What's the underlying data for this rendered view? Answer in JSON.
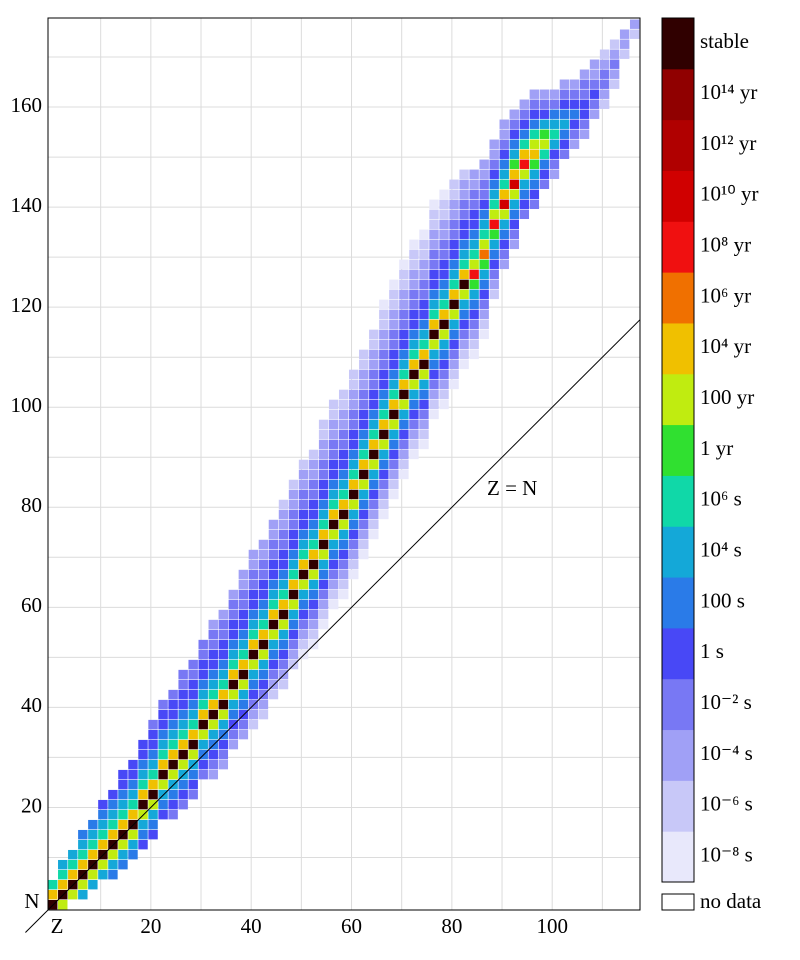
{
  "chart_data": {
    "type": "heatmap",
    "xlabel": "Z",
    "ylabel": "N",
    "xlim": [
      -0.5,
      117.5
    ],
    "ylim": [
      -0.5,
      177.8
    ],
    "xticks": [
      20,
      40,
      60,
      80,
      100
    ],
    "yticks": [
      20,
      40,
      60,
      80,
      100,
      120,
      140,
      160
    ],
    "xgrid": [
      10,
      20,
      30,
      40,
      50,
      60,
      70,
      80,
      90,
      100,
      110
    ],
    "ygrid": [
      10,
      20,
      30,
      40,
      50,
      60,
      70,
      80,
      90,
      100,
      110,
      120,
      130,
      140,
      150,
      160,
      170
    ],
    "grid_color": "#dcdcdc",
    "bin": 2,
    "diagonal_label": "Z = N",
    "rows": [
      {
        "z": 0,
        "n0": 0,
        "levels": [
          16,
          10,
          7
        ]
      },
      {
        "z": 2,
        "n0": 0,
        "levels": [
          9,
          16,
          10,
          7,
          6
        ]
      },
      {
        "z": 4,
        "n0": 2,
        "levels": [
          9,
          16,
          10,
          7,
          6
        ]
      },
      {
        "z": 6,
        "n0": 2,
        "levels": [
          6,
          9,
          16,
          10,
          7,
          6,
          5
        ]
      },
      {
        "z": 8,
        "n0": 4,
        "levels": [
          6,
          9,
          16,
          10,
          7,
          6,
          5
        ]
      },
      {
        "z": 10,
        "n0": 6,
        "levels": [
          6,
          9,
          16,
          10,
          7,
          6,
          5,
          4
        ]
      },
      {
        "z": 12,
        "n0": 6,
        "levels": [
          5,
          6,
          9,
          16,
          10,
          7,
          6,
          5,
          4
        ]
      },
      {
        "z": 14,
        "n0": 8,
        "levels": [
          5,
          6,
          9,
          16,
          10,
          7,
          6,
          5,
          4,
          4
        ]
      },
      {
        "z": 16,
        "n0": 10,
        "levels": [
          5,
          6,
          9,
          16,
          10,
          7,
          6,
          5,
          4,
          4
        ]
      },
      {
        "z": 18,
        "n0": 12,
        "levels": [
          4,
          5,
          6,
          9,
          16,
          10,
          7,
          6,
          5,
          4,
          4
        ]
      },
      {
        "z": 20,
        "n0": 14,
        "levels": [
          4,
          5,
          6,
          9,
          16,
          10,
          7,
          6,
          5,
          4,
          4,
          3
        ]
      },
      {
        "z": 22,
        "n0": 18,
        "levels": [
          4,
          5,
          6,
          9,
          16,
          10,
          7,
          6,
          5,
          4,
          4,
          3
        ]
      },
      {
        "z": 24,
        "n0": 18,
        "levels": [
          3,
          4,
          5,
          6,
          9,
          16,
          10,
          7,
          6,
          5,
          4,
          4,
          3
        ]
      },
      {
        "z": 26,
        "n0": 20,
        "levels": [
          3,
          4,
          5,
          6,
          9,
          16,
          10,
          7,
          6,
          5,
          4,
          4,
          3,
          3
        ]
      },
      {
        "z": 28,
        "n0": 22,
        "levels": [
          3,
          4,
          5,
          6,
          9,
          16,
          10,
          7,
          6,
          5,
          4,
          4,
          3,
          3
        ]
      },
      {
        "z": 30,
        "n0": 26,
        "levels": [
          3,
          4,
          5,
          6,
          9,
          16,
          10,
          7,
          6,
          5,
          4,
          4,
          3,
          3
        ]
      },
      {
        "z": 32,
        "n0": 26,
        "levels": [
          2,
          3,
          4,
          5,
          6,
          9,
          16,
          10,
          7,
          6,
          5,
          4,
          4,
          3,
          3,
          2
        ]
      },
      {
        "z": 34,
        "n0": 28,
        "levels": [
          2,
          3,
          4,
          5,
          6,
          9,
          16,
          10,
          7,
          6,
          5,
          4,
          4,
          3,
          3,
          2
        ]
      },
      {
        "z": 36,
        "n0": 32,
        "levels": [
          2,
          3,
          4,
          5,
          6,
          9,
          16,
          10,
          7,
          6,
          5,
          4,
          4,
          3,
          3,
          2
        ]
      },
      {
        "z": 38,
        "n0": 34,
        "levels": [
          2,
          3,
          4,
          5,
          6,
          9,
          16,
          10,
          7,
          6,
          5,
          4,
          4,
          3,
          3,
          2,
          2
        ]
      },
      {
        "z": 40,
        "n0": 36,
        "levels": [
          1,
          2,
          3,
          4,
          5,
          6,
          9,
          16,
          10,
          7,
          6,
          5,
          4,
          4,
          3,
          3,
          2,
          2
        ]
      },
      {
        "z": 42,
        "n0": 38,
        "levels": [
          1,
          2,
          3,
          4,
          5,
          6,
          9,
          16,
          10,
          7,
          6,
          5,
          4,
          4,
          3,
          3,
          2,
          2
        ]
      },
      {
        "z": 44,
        "n0": 42,
        "levels": [
          1,
          2,
          3,
          4,
          5,
          6,
          9,
          16,
          10,
          7,
          6,
          5,
          4,
          4,
          3,
          3,
          2,
          2
        ]
      },
      {
        "z": 46,
        "n0": 44,
        "levels": [
          1,
          2,
          3,
          4,
          5,
          6,
          9,
          16,
          10,
          7,
          6,
          5,
          4,
          4,
          3,
          3,
          2,
          2,
          1
        ]
      },
      {
        "z": 48,
        "n0": 48,
        "levels": [
          1,
          2,
          3,
          4,
          5,
          6,
          9,
          16,
          10,
          7,
          6,
          5,
          4,
          4,
          3,
          3,
          2,
          2,
          1
        ]
      },
      {
        "z": 50,
        "n0": 50,
        "levels": [
          0,
          1,
          2,
          3,
          4,
          5,
          6,
          9,
          16,
          10,
          7,
          6,
          5,
          4,
          4,
          3,
          3,
          2,
          2,
          1
        ]
      },
      {
        "z": 52,
        "n0": 52,
        "levels": [
          0,
          1,
          2,
          3,
          4,
          5,
          6,
          9,
          16,
          10,
          7,
          6,
          5,
          4,
          4,
          3,
          3,
          2,
          2,
          1
        ]
      },
      {
        "z": 54,
        "n0": 56,
        "levels": [
          0,
          1,
          2,
          3,
          4,
          5,
          6,
          9,
          16,
          10,
          7,
          6,
          5,
          4,
          4,
          3,
          3,
          2,
          2,
          1,
          1
        ]
      },
      {
        "z": 56,
        "n0": 60,
        "levels": [
          0,
          1,
          2,
          3,
          4,
          5,
          6,
          9,
          16,
          10,
          7,
          6,
          5,
          4,
          4,
          3,
          3,
          2,
          2,
          1,
          1
        ]
      },
      {
        "z": 58,
        "n0": 62,
        "levels": [
          0,
          1,
          2,
          3,
          4,
          5,
          6,
          9,
          16,
          10,
          7,
          6,
          5,
          4,
          4,
          3,
          3,
          2,
          2,
          1,
          1
        ]
      },
      {
        "z": 60,
        "n0": 66,
        "levels": [
          0,
          1,
          2,
          3,
          4,
          5,
          6,
          9,
          16,
          10,
          7,
          6,
          5,
          4,
          4,
          3,
          3,
          2,
          2,
          1,
          1
        ]
      },
      {
        "z": 62,
        "n0": 70,
        "levels": [
          0,
          1,
          2,
          3,
          4,
          5,
          6,
          9,
          16,
          10,
          7,
          6,
          5,
          4,
          4,
          3,
          3,
          2,
          2,
          1,
          1
        ]
      },
      {
        "z": 64,
        "n0": 74,
        "levels": [
          0,
          1,
          2,
          3,
          4,
          5,
          6,
          9,
          16,
          10,
          7,
          6,
          5,
          4,
          4,
          3,
          3,
          2,
          2,
          1,
          1
        ]
      },
      {
        "z": 66,
        "n0": 78,
        "levels": [
          0,
          1,
          2,
          3,
          4,
          5,
          6,
          9,
          16,
          10,
          7,
          6,
          5,
          4,
          4,
          3,
          3,
          2,
          2,
          1,
          1,
          0
        ]
      },
      {
        "z": 68,
        "n0": 82,
        "levels": [
          0,
          1,
          2,
          3,
          4,
          5,
          6,
          9,
          16,
          10,
          7,
          6,
          5,
          4,
          4,
          3,
          3,
          2,
          2,
          1,
          1,
          0
        ]
      },
      {
        "z": 70,
        "n0": 86,
        "levels": [
          0,
          1,
          2,
          3,
          4,
          5,
          6,
          9,
          16,
          10,
          7,
          6,
          5,
          4,
          4,
          3,
          3,
          2,
          2,
          1,
          1,
          0
        ]
      },
      {
        "z": 72,
        "n0": 90,
        "levels": [
          0,
          1,
          2,
          3,
          4,
          5,
          6,
          9,
          16,
          10,
          7,
          6,
          5,
          4,
          4,
          3,
          3,
          2,
          2,
          1,
          1,
          0
        ]
      },
      {
        "z": 74,
        "n0": 92,
        "levels": [
          0,
          1,
          2,
          3,
          4,
          5,
          6,
          9,
          16,
          10,
          7,
          6,
          5,
          4,
          4,
          3,
          3,
          2,
          2,
          1,
          1,
          0
        ]
      },
      {
        "z": 76,
        "n0": 98,
        "levels": [
          0,
          1,
          2,
          3,
          4,
          5,
          6,
          9,
          16,
          10,
          7,
          6,
          5,
          4,
          4,
          3,
          3,
          2,
          2,
          1,
          1,
          0
        ]
      },
      {
        "z": 78,
        "n0": 100,
        "levels": [
          0,
          1,
          2,
          3,
          4,
          5,
          6,
          9,
          16,
          10,
          7,
          6,
          5,
          4,
          4,
          3,
          3,
          2,
          2,
          1,
          1,
          0
        ]
      },
      {
        "z": 80,
        "n0": 104,
        "levels": [
          0,
          1,
          2,
          3,
          4,
          5,
          6,
          9,
          16,
          10,
          7,
          6,
          5,
          4,
          4,
          3,
          3,
          2,
          2,
          1,
          1
        ]
      },
      {
        "z": 82,
        "n0": 108,
        "levels": [
          0,
          1,
          2,
          3,
          4,
          5,
          6,
          9,
          16,
          10,
          7,
          6,
          5,
          4,
          4,
          3,
          3,
          2,
          2,
          1
        ]
      },
      {
        "z": 84,
        "n0": 110,
        "levels": [
          0,
          1,
          2,
          3,
          4,
          5,
          6,
          8,
          12,
          9,
          7,
          6,
          5,
          4,
          4,
          3,
          3,
          2,
          2
        ]
      },
      {
        "z": 86,
        "n0": 114,
        "levels": [
          0,
          1,
          2,
          3,
          4,
          5,
          6,
          8,
          11,
          9,
          7,
          6,
          5,
          4,
          3,
          3,
          2,
          2
        ]
      },
      {
        "z": 88,
        "n0": 122,
        "levels": [
          1,
          2,
          3,
          4,
          5,
          6,
          8,
          12,
          9,
          7,
          6,
          5,
          4,
          3,
          2,
          2
        ]
      },
      {
        "z": 90,
        "n0": 128,
        "levels": [
          2,
          3,
          4,
          5,
          6,
          9,
          13,
          10,
          7,
          6,
          5,
          4,
          3,
          2,
          2
        ]
      },
      {
        "z": 92,
        "n0": 132,
        "levels": [
          2,
          3,
          4,
          5,
          6,
          9,
          13,
          10,
          8,
          6,
          5,
          4,
          3,
          2
        ]
      },
      {
        "z": 94,
        "n0": 138,
        "levels": [
          3,
          4,
          5,
          6,
          9,
          12,
          10,
          7,
          5,
          4,
          3,
          2
        ]
      },
      {
        "z": 96,
        "n0": 140,
        "levels": [
          3,
          4,
          5,
          6,
          8,
          10,
          9,
          7,
          5,
          4,
          3,
          2
        ]
      },
      {
        "z": 98,
        "n0": 144,
        "levels": [
          3,
          4,
          5,
          7,
          9,
          8,
          6,
          4,
          3,
          2
        ]
      },
      {
        "z": 100,
        "n0": 146,
        "levels": [
          2,
          3,
          4,
          6,
          7,
          6,
          5,
          3,
          2
        ]
      },
      {
        "z": 102,
        "n0": 150,
        "levels": [
          3,
          4,
          5,
          6,
          5,
          4,
          3,
          2
        ]
      },
      {
        "z": 104,
        "n0": 152,
        "levels": [
          2,
          3,
          4,
          5,
          4,
          3,
          2
        ]
      },
      {
        "z": 106,
        "n0": 154,
        "levels": [
          2,
          3,
          4,
          4,
          3,
          3,
          2
        ]
      },
      {
        "z": 108,
        "n0": 158,
        "levels": [
          2,
          3,
          4,
          3,
          2,
          2
        ]
      },
      {
        "z": 110,
        "n0": 160,
        "levels": [
          1,
          2,
          3,
          3,
          2,
          1
        ]
      },
      {
        "z": 112,
        "n0": 164,
        "levels": [
          1,
          2,
          3,
          2,
          1
        ]
      },
      {
        "z": 114,
        "n0": 170,
        "levels": [
          1,
          2,
          2
        ]
      },
      {
        "z": 116,
        "n0": 174,
        "levels": [
          1,
          2
        ]
      }
    ],
    "colorbar": {
      "colors": [
        "#e8e8fb",
        "#c8c8f8",
        "#a0a0f6",
        "#7878f4",
        "#4848f6",
        "#2a7be8",
        "#14a8d8",
        "#10d8a8",
        "#30e030",
        "#c0ec10",
        "#f0c000",
        "#f07000",
        "#f01010",
        "#d00000",
        "#b00000",
        "#900000",
        "#300000"
      ],
      "ticks": [
        {
          "value": 0,
          "label": "10⁻⁸ s"
        },
        {
          "value": 1,
          "label": "10⁻⁶ s"
        },
        {
          "value": 2,
          "label": "10⁻⁴ s"
        },
        {
          "value": 3,
          "label": "10⁻² s"
        },
        {
          "value": 4,
          "label": "1 s"
        },
        {
          "value": 5,
          "label": "100 s"
        },
        {
          "value": 6,
          "label": "10⁴ s"
        },
        {
          "value": 7,
          "label": "10⁶ s"
        },
        {
          "value": 8,
          "label": "1 yr"
        },
        {
          "value": 9,
          "label": "100 yr"
        },
        {
          "value": 10,
          "label": "10⁴ yr"
        },
        {
          "value": 11,
          "label": "10⁶ yr"
        },
        {
          "value": 12,
          "label": "10⁸ yr"
        },
        {
          "value": 13,
          "label": "10¹⁰ yr"
        },
        {
          "value": 14,
          "label": "10¹² yr"
        },
        {
          "value": 15,
          "label": "10¹⁴ yr"
        },
        {
          "value": 16,
          "label": "stable"
        }
      ],
      "no_data": "no data"
    }
  }
}
